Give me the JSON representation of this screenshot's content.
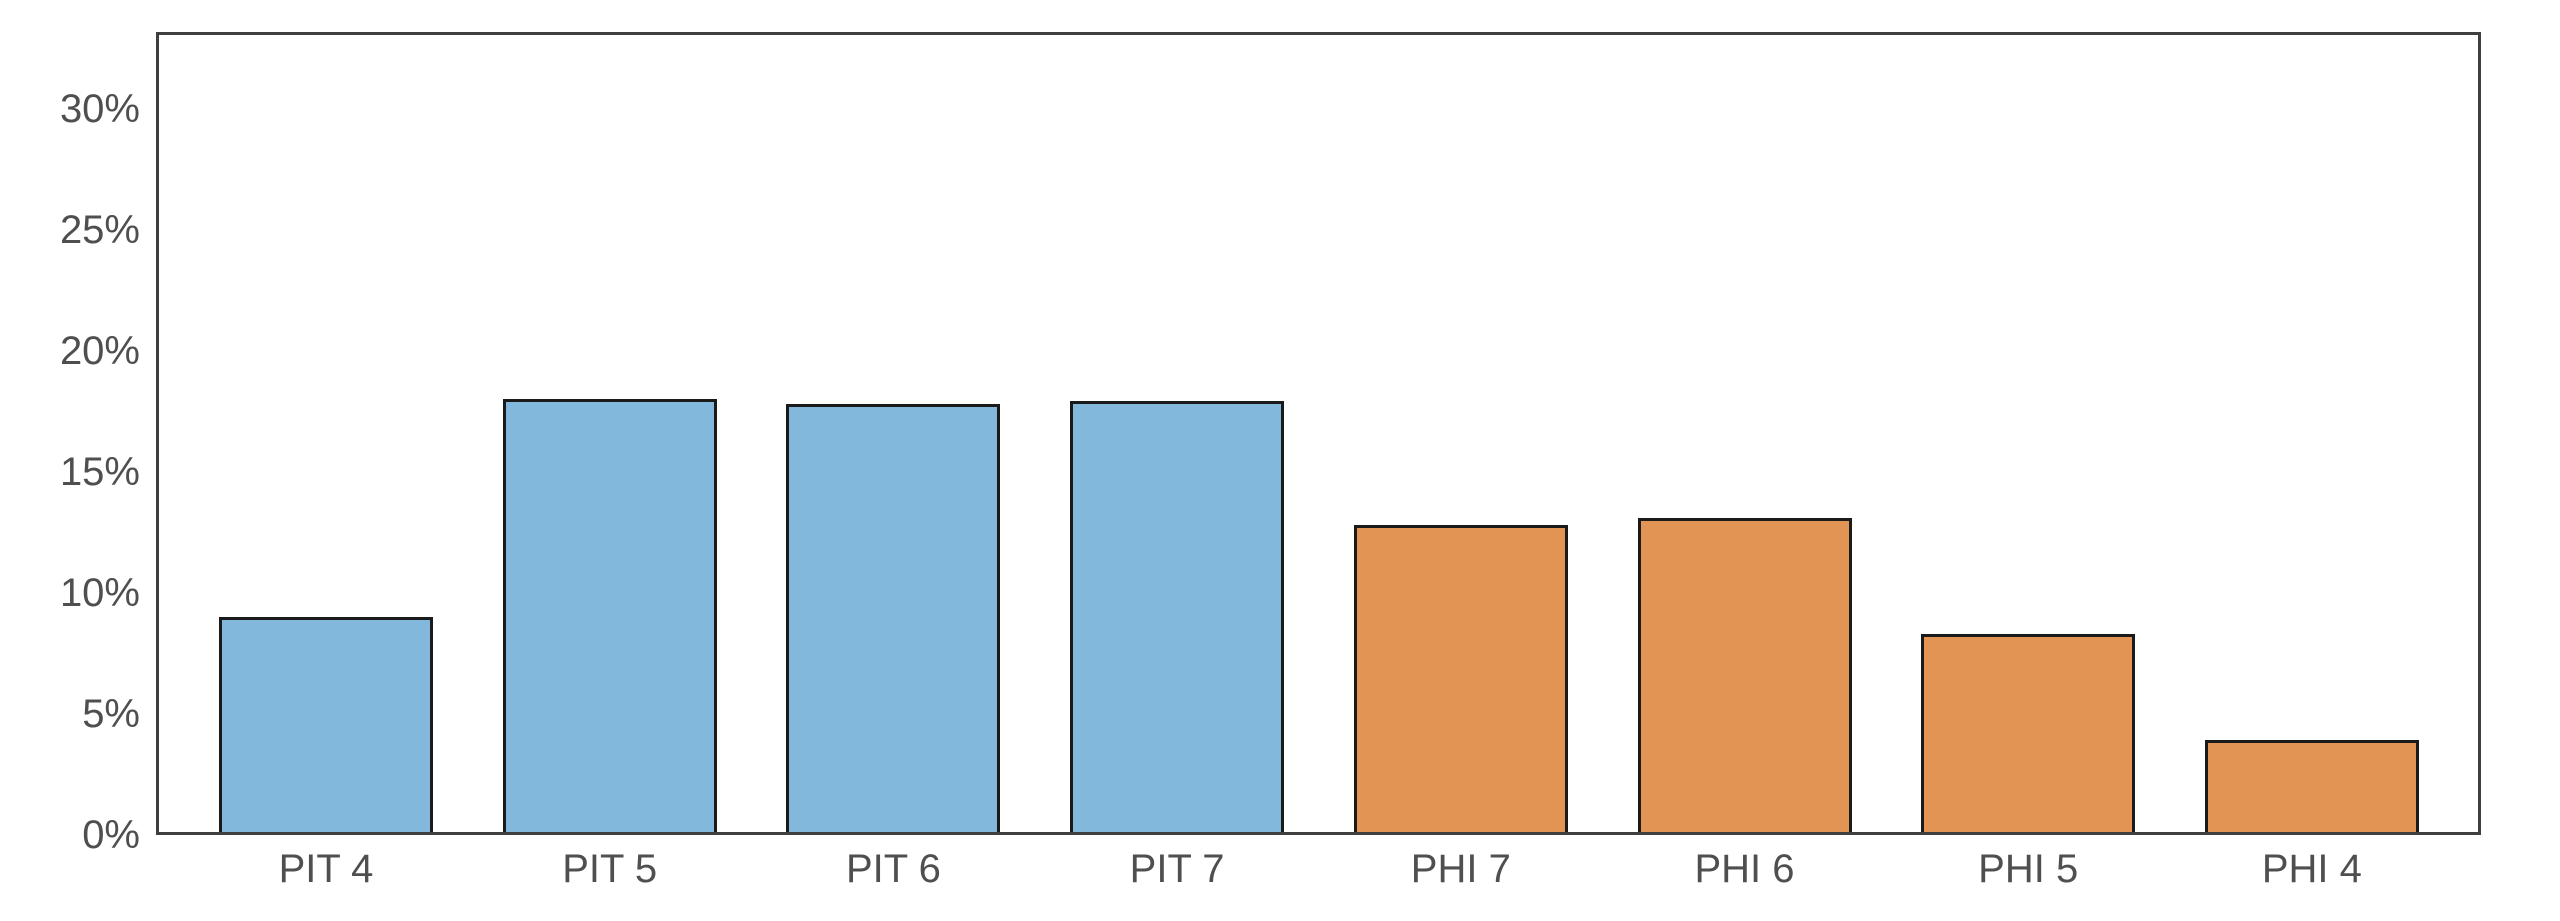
{
  "chart_data": {
    "type": "bar",
    "title": "",
    "xlabel": "",
    "ylabel": "",
    "categories": [
      "PIT 4",
      "PIT 5",
      "PIT 6",
      "PIT 7",
      "PHI 7",
      "PHI 6",
      "PHI 5",
      "PHI 4"
    ],
    "values": [
      8.9,
      17.9,
      17.7,
      17.8,
      12.7,
      13.0,
      8.2,
      3.8
    ],
    "groups": [
      "PIT",
      "PIT",
      "PIT",
      "PIT",
      "PHI",
      "PHI",
      "PHI",
      "PHI"
    ],
    "group_colors": {
      "PIT": "#82b8db",
      "PHI": "#e29455"
    },
    "bar_edge_color": "#1a1a1a",
    "frame_color": "#3f3f3f",
    "tick_label_color": "#4f4f4f",
    "ylim": [
      0,
      33.2
    ],
    "yticks": [
      0,
      5,
      10,
      15,
      20,
      25,
      30
    ],
    "ytick_labels": [
      "0%",
      "5%",
      "10%",
      "15%",
      "20%",
      "25%",
      "30%"
    ],
    "grid": false,
    "legend": "none"
  }
}
